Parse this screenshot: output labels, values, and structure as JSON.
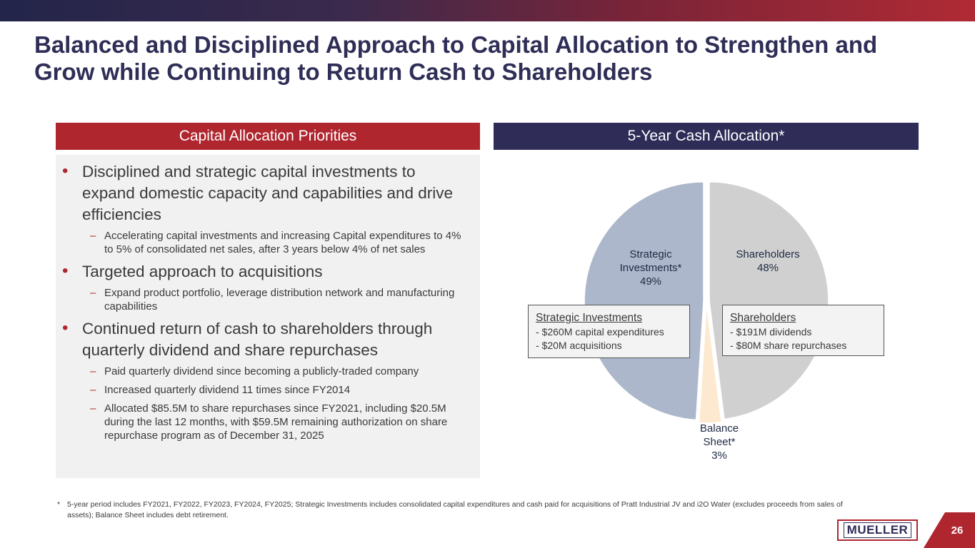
{
  "title": "Balanced and Disciplined Approach to Capital Allocation to Strengthen and Grow while Continuing to Return Cash to Shareholders",
  "left_header": "Capital Allocation Priorities",
  "right_header": "5-Year Cash Allocation*",
  "priorities": [
    {
      "text": "Disciplined and strategic capital investments to expand domestic capacity and capabilities and drive efficiencies",
      "subs": [
        "Accelerating capital investments and increasing Capital expenditures to 4% to 5% of consolidated net sales, after 3 years below 4% of net sales"
      ]
    },
    {
      "text": "Targeted approach to acquisitions",
      "subs": [
        "Expand product portfolio, leverage distribution network and manufacturing capabilities"
      ]
    },
    {
      "text": "Continued return of cash to shareholders through quarterly dividend and share repurchases",
      "subs": [
        "Paid quarterly dividend since becoming a publicly-traded company",
        "Increased quarterly dividend 11 times since FY2014",
        "Allocated $85.5M to share repurchases since FY2021, including $20.5M during the last 12 months, with $59.5M remaining authorization on share repurchase program as of December 31, 2025"
      ]
    }
  ],
  "bullet_glyph": "•",
  "dash_glyph": "–",
  "chart_data": {
    "type": "pie",
    "slices": [
      {
        "label_lines": [
          "Shareholders",
          "48%"
        ],
        "value": 48,
        "color": "#d0d0d0"
      },
      {
        "label_lines": [
          "Balance",
          "Sheet*",
          "3%"
        ],
        "value": 3,
        "color": "#fde9cf"
      },
      {
        "label_lines": [
          "Strategic",
          "Investments*",
          "49%"
        ],
        "value": 49,
        "color": "#acb7cb"
      }
    ],
    "start": "12 o'clock",
    "direction": "clockwise"
  },
  "callouts": {
    "strategic": {
      "title": "Strategic Investments",
      "lines": [
        "- $260M capital expenditures",
        "- $20M acquisitions"
      ]
    },
    "shareholders": {
      "title": "Shareholders",
      "lines": [
        "- $191M dividends",
        "- $80M share repurchases"
      ]
    }
  },
  "footnote": {
    "marker": "*",
    "text": "5-year period includes FY2021, FY2022, FY2023, FY2024, FY2025;  Strategic Investments includes consolidated capital expenditures and cash paid for acquisitions of Pratt Industrial JV and i2O Water (excludes proceeds from sales of assets); Balance Sheet includes debt retirement."
  },
  "logo_text": "MUELLER",
  "page_number": "26"
}
